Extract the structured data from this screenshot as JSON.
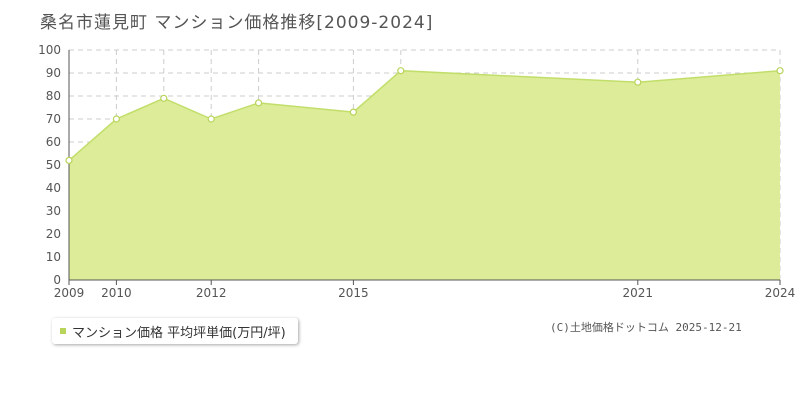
{
  "title": "桑名市蓮見町 マンション価格推移[2009-2024]",
  "legend_label": "マンション価格 平均坪単価(万円/坪)",
  "copyright": "(C)土地価格ドットコム 2025-12-21",
  "colors": {
    "fill": "#dcec98",
    "line": "#c2de6a",
    "marker_fill": "#ffffff",
    "marker_stroke": "#b8d45a",
    "grid": "#cccccc",
    "legend_swatch": "#b8d45a"
  },
  "chart_data": {
    "type": "area",
    "x": [
      2009,
      2010,
      2011,
      2012,
      2013,
      2015,
      2016,
      2021,
      2024
    ],
    "values": [
      52,
      70,
      79,
      70,
      77,
      73,
      91,
      86,
      91
    ],
    "x_tick_labels": [
      {
        "x": 2009,
        "label": "2009"
      },
      {
        "x": 2010,
        "label": "2010"
      },
      {
        "x": 2012,
        "label": "2012"
      },
      {
        "x": 2015,
        "label": "2015"
      },
      {
        "x": 2021,
        "label": "2021"
      },
      {
        "x": 2024,
        "label": "2024"
      }
    ],
    "y_ticks": [
      0,
      10,
      20,
      30,
      40,
      50,
      60,
      70,
      80,
      90,
      100
    ],
    "ylim": [
      0,
      100
    ],
    "grid": true
  }
}
